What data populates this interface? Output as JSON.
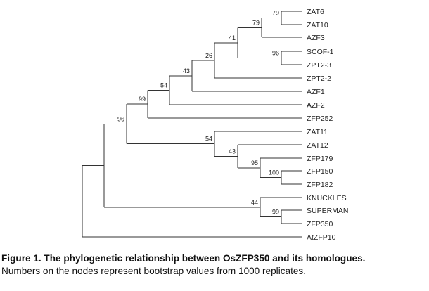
{
  "figure": {
    "leaves": [
      "ZAT6",
      "ZAT10",
      "AZF3",
      "SCOF-1",
      "ZPT2-3",
      "ZPT2-2",
      "AZF1",
      "AZF2",
      "ZFP252",
      "ZAT11",
      "ZAT12",
      "ZFP179",
      "ZFP150",
      "ZFP182",
      "KNUCKLES",
      "SUPERMAN",
      "ZFP350",
      "AtZFP10"
    ],
    "bootstrap": [
      "79",
      "79",
      "41",
      "96",
      "26",
      "43",
      "54",
      "99",
      "96",
      "100",
      "95",
      "43",
      "54",
      "99",
      "44"
    ],
    "caption_title": "Figure 1. The phylogenetic relationship between OsZFP350 and its homologues.",
    "caption_text": "Numbers on the nodes represent bootstrap values from 1000 replicates."
  }
}
